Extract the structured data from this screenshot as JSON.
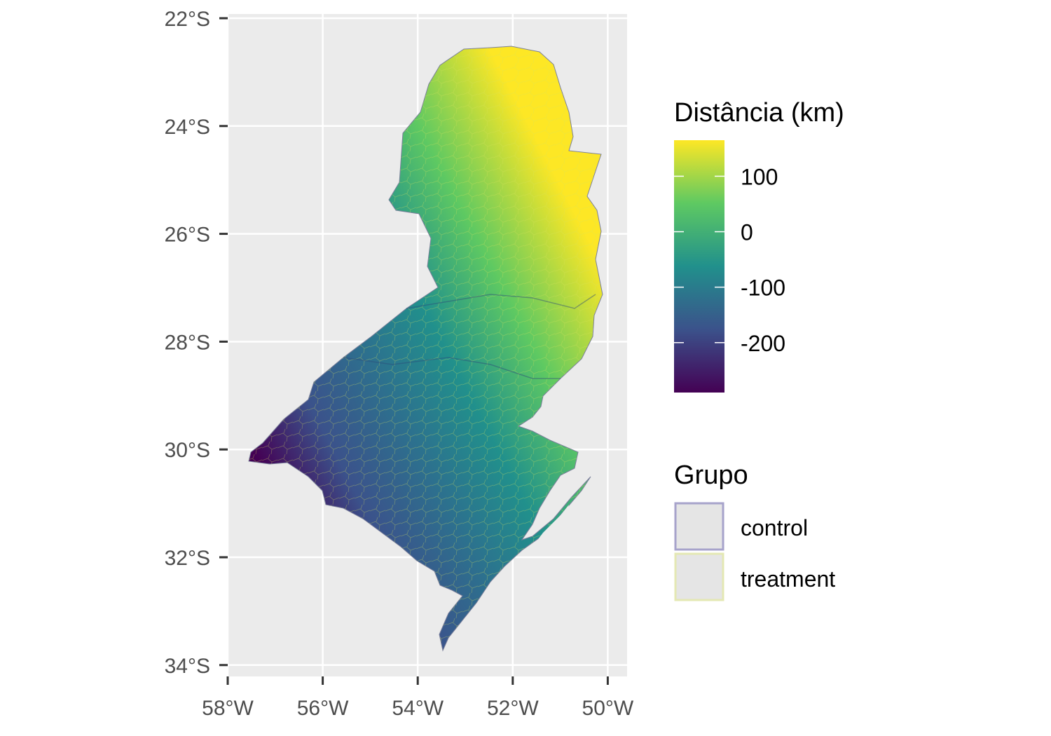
{
  "map": {
    "y_ticks": [
      "22°S",
      "24°S",
      "26°S",
      "28°S",
      "30°S",
      "32°S",
      "34°S"
    ],
    "x_ticks": [
      "58°W",
      "56°W",
      "54°W",
      "52°W",
      "50°W"
    ],
    "lat_values": [
      -22,
      -24,
      -26,
      -28,
      -30,
      -32,
      -34
    ],
    "lon_values": [
      -58,
      -56,
      -54,
      -52,
      -50
    ],
    "lat_range": [
      -34.15,
      -21.95
    ],
    "lon_range": [
      -57.95,
      -49.65
    ],
    "panel_background": "#ebebeb",
    "grid_color": "#ffffff",
    "region": "Southern Brazil (Paraná, Santa Catarina, Rio Grande do Sul) municipalities"
  },
  "legend_distance": {
    "title": "Distância (km)",
    "breaks": [
      100,
      0,
      -100,
      -200
    ],
    "labels": [
      "100",
      "0",
      "-100",
      "-200"
    ],
    "range": [
      -290,
      165
    ],
    "palette": "viridis",
    "colors": [
      "#440154",
      "#3b528b",
      "#21908c",
      "#5ec962",
      "#fde725"
    ]
  },
  "legend_group": {
    "title": "Grupo",
    "items": [
      {
        "label": "control",
        "border": "#a7a3cb"
      },
      {
        "label": "treatment",
        "border": "#e4e8b4"
      }
    ],
    "key_fill": "#e5e5e5"
  }
}
